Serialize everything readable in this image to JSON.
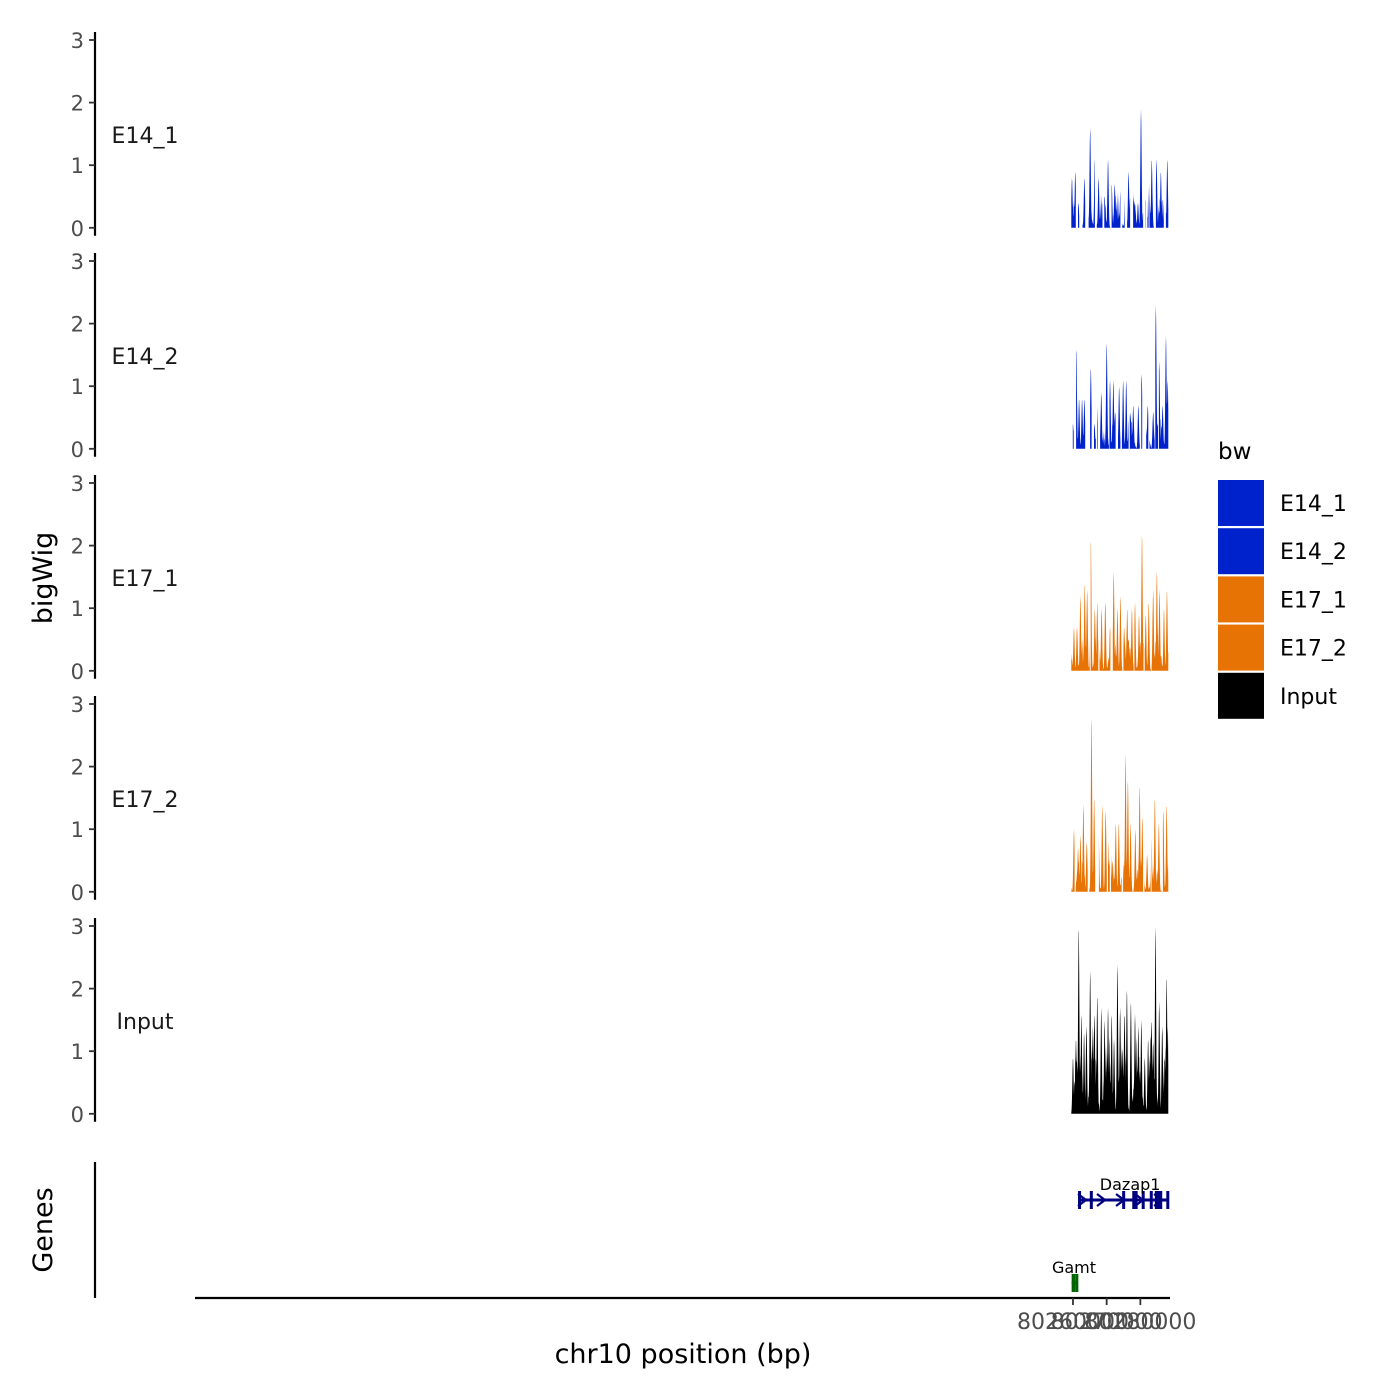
{
  "chart_data": {
    "type": "area",
    "ylabel": "bigWig",
    "xlabel": "chr10 position (bp)",
    "genes_label": "Genes",
    "xlim": [
      79999400,
      80288800
    ],
    "x_ticks": [
      {
        "value": 80260000,
        "label": "80260000"
      },
      {
        "value": 80270000,
        "label": "80270000"
      },
      {
        "value": 80280000,
        "label": "80280000"
      }
    ],
    "ylim": [
      0,
      3
    ],
    "y_ticks": [
      {
        "value": 0,
        "label": "0"
      },
      {
        "value": 1,
        "label": "1"
      },
      {
        "value": 2,
        "label": "2"
      },
      {
        "value": 3,
        "label": "3"
      }
    ],
    "signal_range": [
      80259500,
      80288300
    ],
    "series": [
      {
        "name": "E14_1",
        "color": "#0022cc",
        "peaks": [
          [
            80259700,
            0.8
          ],
          [
            80260700,
            0.9
          ],
          [
            80261600,
            0.4
          ],
          [
            80263400,
            0.8
          ],
          [
            80265100,
            1.6
          ],
          [
            80266500,
            1.1
          ],
          [
            80267600,
            0.8
          ],
          [
            80269400,
            0.5
          ],
          [
            80270400,
            1.1
          ],
          [
            80271500,
            0.7
          ],
          [
            80272400,
            0.7
          ],
          [
            80274100,
            0.6
          ],
          [
            80275600,
            1.3
          ],
          [
            80276500,
            0.9
          ],
          [
            80277600,
            0.4
          ],
          [
            80278400,
            0.3
          ],
          [
            80279300,
            0.4
          ],
          [
            80280200,
            1.9
          ],
          [
            80281500,
            0.3
          ],
          [
            80282600,
            0.9
          ],
          [
            80283400,
            1.1
          ],
          [
            80284800,
            1.1
          ],
          [
            80286100,
            0.9
          ],
          [
            80287200,
            0.5
          ],
          [
            80288000,
            1.1
          ]
        ],
        "gaps": [
          [
            80260900,
            80261400
          ],
          [
            80261900,
            80262800
          ],
          [
            80263700,
            80264600
          ],
          [
            80266600,
            80267000
          ],
          [
            80268800,
            80269300
          ],
          [
            80271100,
            80271400
          ],
          [
            80274100,
            80274600
          ],
          [
            80275400,
            80276000
          ],
          [
            80277000,
            80277800
          ],
          [
            80280900,
            80281400
          ],
          [
            80281600,
            80282000
          ],
          [
            80282500,
            80282700
          ],
          [
            80284200,
            80284600
          ],
          [
            80287000,
            80287500
          ]
        ]
      },
      {
        "name": "E14_2",
        "color": "#0022cc",
        "peaks": [
          [
            80260000,
            0.4
          ],
          [
            80261000,
            1.6
          ],
          [
            80261800,
            0.8
          ],
          [
            80262700,
            0.8
          ],
          [
            80263400,
            0.8
          ],
          [
            80265300,
            1.3
          ],
          [
            80266400,
            0.4
          ],
          [
            80267100,
            0.7
          ],
          [
            80268400,
            0.9
          ],
          [
            80270000,
            1.7
          ],
          [
            80271000,
            1.1
          ],
          [
            80272000,
            1.1
          ],
          [
            80273700,
            1.0
          ],
          [
            80274900,
            1.1
          ],
          [
            80275800,
            1.1
          ],
          [
            80276700,
            0.8
          ],
          [
            80277900,
            0.7
          ],
          [
            80279400,
            0.7
          ],
          [
            80280400,
            1.2
          ],
          [
            80282200,
            0.7
          ],
          [
            80283800,
            0.6
          ],
          [
            80284600,
            2.3
          ],
          [
            80285600,
            1.4
          ],
          [
            80286600,
            0.7
          ],
          [
            80287600,
            1.8
          ],
          [
            80288100,
            1.1
          ]
        ],
        "gaps": [
          [
            80259500,
            80259900
          ],
          [
            80260300,
            80260900
          ],
          [
            80263700,
            80265000
          ],
          [
            80265600,
            80266200
          ],
          [
            80266800,
            80267100
          ],
          [
            80267400,
            80268000
          ],
          [
            80270700,
            80270800
          ],
          [
            80272700,
            80273300
          ],
          [
            80274100,
            80274500
          ],
          [
            80276600,
            80276800
          ],
          [
            80279900,
            80280200
          ],
          [
            80280600,
            80281700
          ],
          [
            80282400,
            80282700
          ],
          [
            80284300,
            80284400
          ],
          [
            80285300,
            80285500
          ]
        ]
      },
      {
        "name": "E17_1",
        "color": "#e87305",
        "peaks": [
          [
            80260300,
            0.7
          ],
          [
            80261200,
            0.7
          ],
          [
            80262200,
            1.2
          ],
          [
            80263500,
            1.4
          ],
          [
            80264200,
            1.3
          ],
          [
            80265300,
            2.1
          ],
          [
            80266500,
            1.0
          ],
          [
            80267200,
            1.1
          ],
          [
            80268500,
            1.0
          ],
          [
            80269600,
            1.1
          ],
          [
            80271000,
            0.7
          ],
          [
            80272100,
            1.6
          ],
          [
            80273200,
            1.0
          ],
          [
            80274100,
            1.2
          ],
          [
            80275200,
            0.7
          ],
          [
            80276100,
            1.0
          ],
          [
            80277500,
            1.0
          ],
          [
            80278400,
            1.1
          ],
          [
            80279600,
            0.9
          ],
          [
            80280500,
            2.2
          ],
          [
            80281600,
            0.9
          ],
          [
            80282500,
            1.1
          ],
          [
            80283800,
            1.3
          ],
          [
            80284900,
            1.6
          ],
          [
            80285700,
            1.3
          ],
          [
            80287000,
            1.0
          ],
          [
            80287900,
            1.3
          ]
        ],
        "gaps": [
          [
            80265000,
            80265200
          ],
          [
            80267600,
            80267800
          ],
          [
            80271200,
            80271800
          ],
          [
            80274700,
            80274900
          ],
          [
            80278100,
            80278200
          ],
          [
            80281000,
            80281200
          ],
          [
            80283200,
            80283300
          ]
        ]
      },
      {
        "name": "E17_2",
        "color": "#e87305",
        "peaks": [
          [
            80260300,
            1.0
          ],
          [
            80261500,
            0.7
          ],
          [
            80262200,
            0.9
          ],
          [
            80263100,
            1.4
          ],
          [
            80264100,
            0.8
          ],
          [
            80265500,
            2.8
          ],
          [
            80266300,
            1.5
          ],
          [
            80267600,
            1.0
          ],
          [
            80268700,
            1.4
          ],
          [
            80269700,
            1.3
          ],
          [
            80270400,
            0.8
          ],
          [
            80271800,
            0.5
          ],
          [
            80272700,
            1.1
          ],
          [
            80273600,
            1.1
          ],
          [
            80275600,
            2.2
          ],
          [
            80276300,
            1.8
          ],
          [
            80277100,
            1.1
          ],
          [
            80278500,
            1.0
          ],
          [
            80279800,
            1.7
          ],
          [
            80280600,
            1.2
          ],
          [
            80282000,
            0.6
          ],
          [
            80283300,
            0.9
          ],
          [
            80284300,
            1.5
          ],
          [
            80285500,
            1.1
          ],
          [
            80286800,
            1.3
          ],
          [
            80287800,
            1.4
          ]
        ],
        "gaps": [
          [
            80260500,
            80260800
          ],
          [
            80264400,
            80264600
          ],
          [
            80266700,
            80267600
          ],
          [
            80270100,
            80270300
          ],
          [
            80271000,
            80271200
          ],
          [
            80274500,
            80274800
          ],
          [
            80280900,
            80281100
          ],
          [
            80283100,
            80283300
          ],
          [
            80286400,
            80286600
          ]
        ]
      },
      {
        "name": "Input",
        "color": "#000000",
        "peaks": [
          [
            80260000,
            0.9
          ],
          [
            80260900,
            1.2
          ],
          [
            80261700,
            3.0
          ],
          [
            80262500,
            1.6
          ],
          [
            80263300,
            1.3
          ],
          [
            80264000,
            1.4
          ],
          [
            80265100,
            2.3
          ],
          [
            80266400,
            1.6
          ],
          [
            80267200,
            1.9
          ],
          [
            80268400,
            1.7
          ],
          [
            80269400,
            1.5
          ],
          [
            80270400,
            1.7
          ],
          [
            80271500,
            1.6
          ],
          [
            80272200,
            1.2
          ],
          [
            80273200,
            2.4
          ],
          [
            80274000,
            1.7
          ],
          [
            80275300,
            1.6
          ],
          [
            80276000,
            2.0
          ],
          [
            80277200,
            1.8
          ],
          [
            80278400,
            1.6
          ],
          [
            80279400,
            1.4
          ],
          [
            80280300,
            1.5
          ],
          [
            80281300,
            0.9
          ],
          [
            80282300,
            1.2
          ],
          [
            80283300,
            1.5
          ],
          [
            80284500,
            3.0
          ],
          [
            80285600,
            1.8
          ],
          [
            80286500,
            1.4
          ],
          [
            80287800,
            2.2
          ]
        ],
        "gaps": []
      }
    ],
    "legend": {
      "title": "bw",
      "items": [
        "E14_1",
        "E14_2",
        "E17_1",
        "E17_2",
        "Input"
      ],
      "placement": "right"
    },
    "genes": [
      {
        "name": "Dazap1",
        "color": "#000080",
        "strand": "+",
        "row": "top",
        "start": 80261500,
        "end": 80288500,
        "exons": [
          [
            80261500,
            80261600
          ],
          [
            80265000,
            80265200
          ],
          [
            80274600,
            80274800
          ],
          [
            80277600,
            80277700
          ],
          [
            80278300,
            80278400
          ],
          [
            80280400,
            80281000
          ],
          [
            80282800,
            80283100
          ],
          [
            80284300,
            80284400
          ],
          [
            80284800,
            80284900
          ],
          [
            80285600,
            80285700
          ],
          [
            80287700,
            80288500
          ]
        ]
      },
      {
        "name": "Gamt",
        "color": "#006400",
        "strand": "-",
        "row": "bottom",
        "start": 80259600,
        "end": 80261000,
        "exons": [
          [
            80259600,
            80259700
          ],
          [
            80259800,
            80260000
          ],
          [
            80260700,
            80261000
          ]
        ]
      }
    ]
  }
}
